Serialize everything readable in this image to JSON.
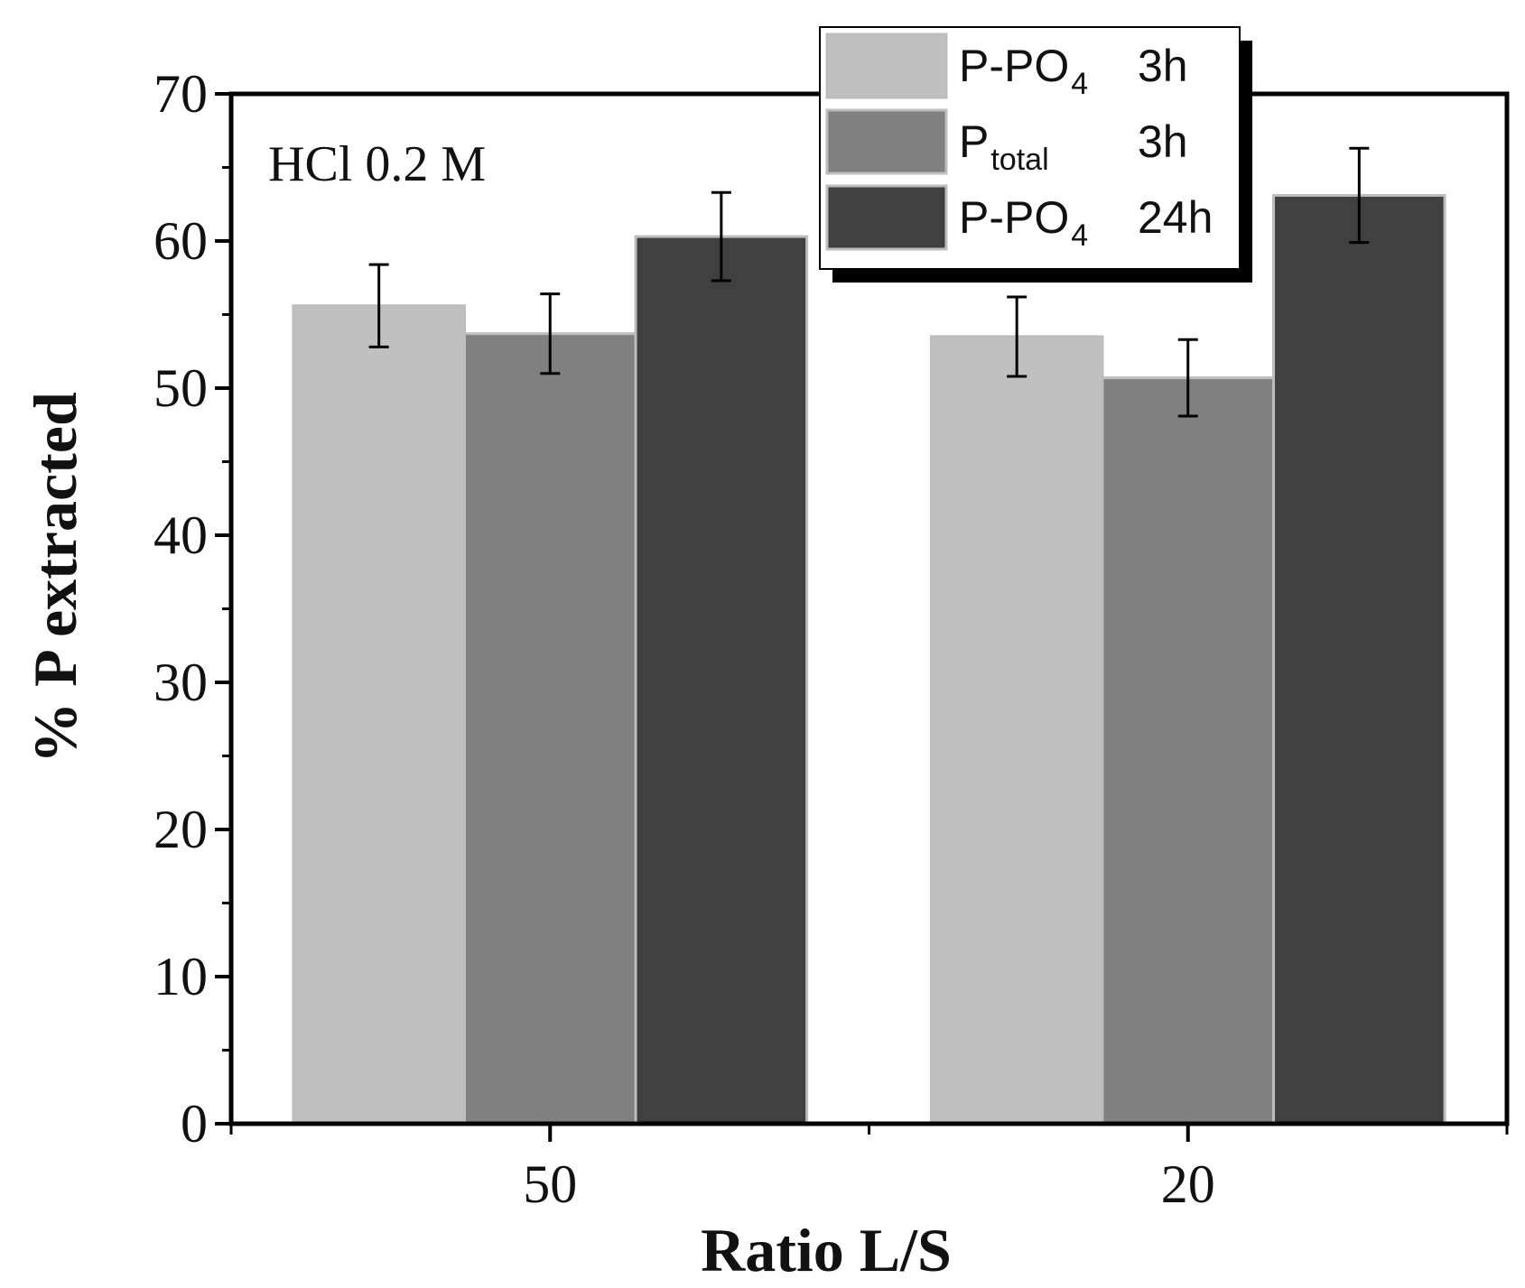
{
  "chart_data": {
    "type": "bar",
    "xlabel": "Ratio L/S",
    "ylabel": "% P extracted",
    "ylim": [
      0,
      70
    ],
    "yticks": [
      "0",
      "10",
      "20",
      "30",
      "40",
      "50",
      "60",
      "70"
    ],
    "categories": [
      "50",
      "20"
    ],
    "annotation": "HCl 0.2 M",
    "series": [
      {
        "name": "P-PO4 3h",
        "label_main": "P-PO",
        "label_sub": "4",
        "label_time": "3h",
        "color": "#c0c0c0",
        "values": [
          55.6,
          53.5
        ],
        "errors": [
          2.8,
          2.7
        ]
      },
      {
        "name": "Ptotal 3h",
        "label_main": "P",
        "label_sub": "total",
        "label_time": "3h",
        "color": "#808080",
        "values": [
          53.7,
          50.7
        ],
        "errors": [
          2.7,
          2.6
        ]
      },
      {
        "name": "P-PO4 24h",
        "label_main": "P-PO",
        "label_sub": "4",
        "label_time": "24h",
        "color": "#404040",
        "values": [
          60.3,
          63.1
        ],
        "errors": [
          3.0,
          3.2
        ]
      }
    ],
    "legend_position": "top-right",
    "grid": false
  }
}
